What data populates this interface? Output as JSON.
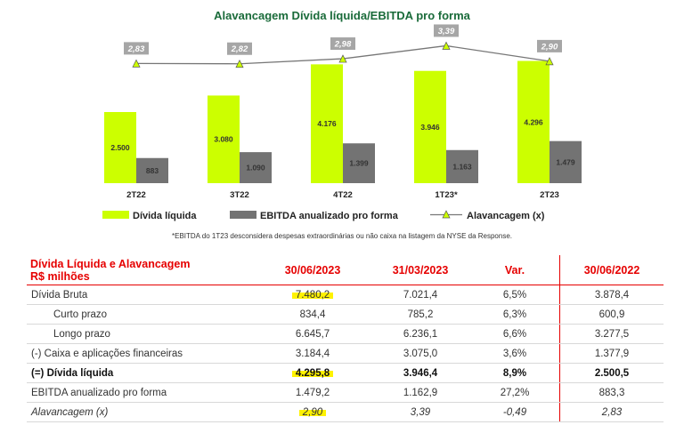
{
  "chart_data": {
    "type": "bar",
    "title": "Alavancagem Dívida líquida/EBITDA pro forma",
    "categories": [
      "2T22",
      "3T22",
      "4T22",
      "1T23*",
      "2T23"
    ],
    "series": [
      {
        "name": "Dívida líquida",
        "values": [
          2500,
          3080,
          4176,
          3946,
          4296
        ],
        "labels": [
          "2.500",
          "3.080",
          "4.176",
          "3.946",
          "4.296"
        ],
        "color": "#ccff00"
      },
      {
        "name": "EBITDA anualizado pro forma",
        "values": [
          883,
          1090,
          1399,
          1163,
          1479
        ],
        "labels": [
          "883",
          "1.090",
          "1.399",
          "1.163",
          "1.479"
        ],
        "color": "#737373"
      }
    ],
    "line_series": {
      "name": "Alavancagem (x)",
      "values": [
        2.83,
        2.82,
        2.98,
        3.39,
        2.9
      ],
      "labels": [
        "2,83",
        "2,82",
        "2,98",
        "3,39",
        "2,90"
      ],
      "color": "#777777",
      "label_bg": "#a6a6a6",
      "marker_color": "#ccff00"
    },
    "legend": [
      "Dívida líquida",
      "EBITDA anualizado pro forma",
      "Alavancagem (x)"
    ],
    "footnote": "*EBITDA do 1T23 desconsidera despesas extraordinárias ou não caixa na listagem da NYSE da Response.",
    "ylim": [
      0,
      5000
    ],
    "line_ylim": [
      0,
      4.5
    ],
    "xlabel": "",
    "ylabel": ""
  },
  "table": {
    "header": {
      "label_line1": "Dívida Líquida e Alavancagem",
      "label_line2": "R$ milhões",
      "cols": [
        "30/06/2023",
        "31/03/2023",
        "Var.",
        "30/06/2022"
      ]
    },
    "rows": [
      {
        "label": "Dívida Bruta",
        "values": [
          "7.480,2",
          "7.021,4",
          "6,5%",
          "3.878,4"
        ],
        "style": "normal",
        "indent": false,
        "highlight": true
      },
      {
        "label": "Curto prazo",
        "values": [
          "834,4",
          "785,2",
          "6,3%",
          "600,9"
        ],
        "style": "normal",
        "indent": true,
        "highlight": false
      },
      {
        "label": "Longo prazo",
        "values": [
          "6.645,7",
          "6.236,1",
          "6,6%",
          "3.277,5"
        ],
        "style": "normal",
        "indent": true,
        "highlight": false
      },
      {
        "label": "(-) Caixa e aplicações financeiras",
        "values": [
          "3.184,4",
          "3.075,0",
          "3,6%",
          "1.377,9"
        ],
        "style": "normal",
        "indent": false,
        "highlight": false
      },
      {
        "label": "(=) Dívida líquida",
        "values": [
          "4.295,8",
          "3.946,4",
          "8,9%",
          "2.500,5"
        ],
        "style": "bold",
        "indent": false,
        "highlight": true
      },
      {
        "label": "EBITDA anualizado pro forma",
        "values": [
          "1.479,2",
          "1.162,9",
          "27,2%",
          "883,3"
        ],
        "style": "normal",
        "indent": false,
        "highlight": false
      },
      {
        "label": "Alavancagem (x)",
        "values": [
          "2,90",
          "3,39",
          "-0,49",
          "2,83"
        ],
        "style": "italic",
        "indent": false,
        "highlight": true
      }
    ]
  }
}
